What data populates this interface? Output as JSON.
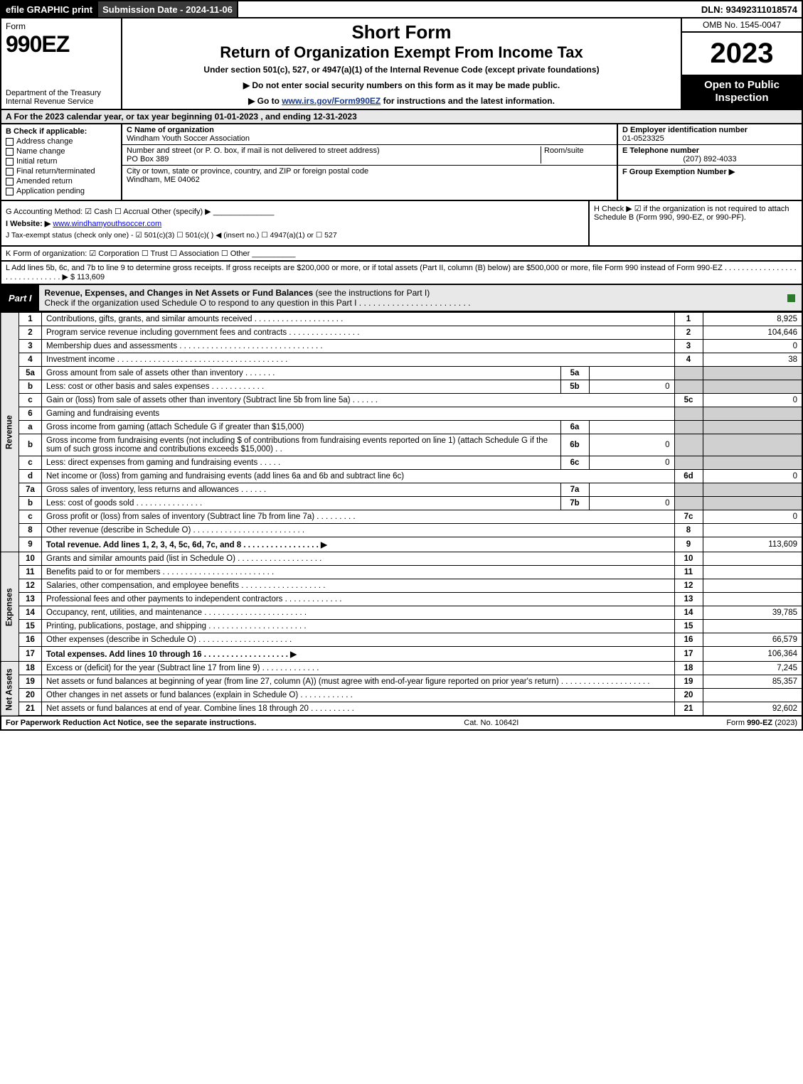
{
  "top": {
    "efile": "efile GRAPHIC print",
    "sub_date_label": "Submission Date - 2024-11-06",
    "dln": "DLN: 93492311018574"
  },
  "header": {
    "form_word": "Form",
    "form_number": "990EZ",
    "dept": "Department of the Treasury\nInternal Revenue Service",
    "short_form": "Short Form",
    "return_title": "Return of Organization Exempt From Income Tax",
    "under_section": "Under section 501(c), 527, or 4947(a)(1) of the Internal Revenue Code (except private foundations)",
    "notice1": "▶ Do not enter social security numbers on this form as it may be made public.",
    "notice2_pre": "▶ Go to ",
    "notice2_link": "www.irs.gov/Form990EZ",
    "notice2_post": " for instructions and the latest information.",
    "omb": "OMB No. 1545-0047",
    "year": "2023",
    "open_public": "Open to Public Inspection"
  },
  "row_a": "A  For the 2023 calendar year, or tax year beginning 01-01-2023 , and ending 12-31-2023",
  "box_b": {
    "title": "B  Check if applicable:",
    "items": [
      "Address change",
      "Name change",
      "Initial return",
      "Final return/terminated",
      "Amended return",
      "Application pending"
    ]
  },
  "box_c": {
    "label_name": "C Name of organization",
    "name": "Windham Youth Soccer Association",
    "label_street": "Number and street (or P. O. box, if mail is not delivered to street address)",
    "room_label": "Room/suite",
    "street": "PO Box 389",
    "label_city": "City or town, state or province, country, and ZIP or foreign postal code",
    "city": "Windham, ME  04062"
  },
  "box_d": {
    "label": "D Employer identification number",
    "value": "01-0523325"
  },
  "box_e": {
    "label": "E Telephone number",
    "value": "(207) 892-4033"
  },
  "box_f": {
    "label": "F Group Exemption Number  ▶",
    "value": ""
  },
  "box_g": "G Accounting Method:  ☑ Cash  ☐ Accrual  Other (specify) ▶ ______________",
  "box_h": "H  Check ▶ ☑ if the organization is not required to attach Schedule B (Form 990, 990-EZ, or 990-PF).",
  "box_i_label": "I Website: ▶",
  "box_i_value": "www.windhamyouthsoccer.com",
  "box_j": "J Tax-exempt status (check only one) - ☑ 501(c)(3) ☐ 501(c)(  ) ◀ (insert no.) ☐ 4947(a)(1) or ☐ 527",
  "row_k": "K Form of organization:  ☑ Corporation  ☐ Trust  ☐ Association  ☐ Other  __________",
  "row_l": "L Add lines 5b, 6c, and 7b to line 9 to determine gross receipts. If gross receipts are $200,000 or more, or if total assets (Part II, column (B) below) are $500,000 or more, file Form 990 instead of Form 990-EZ  .  .  .  .  .  .  .  .  .  .  .  .  .  .  .  .  .  .  .  .  .  .  .  .  .  .  .  .  .  .  ▶ $ 113,609",
  "part1": {
    "label": "Part I",
    "title_bold": "Revenue, Expenses, and Changes in Net Assets or Fund Balances",
    "title_rest": " (see the instructions for Part I)",
    "check_line": "Check if the organization used Schedule O to respond to any question in this Part I  .  .  .  .  .  .  .  .  .  .  .  .  .  .  .  .  .  .  .  .  .  .  .  ."
  },
  "side_labels": {
    "revenue": "Revenue",
    "expenses": "Expenses",
    "netassets": "Net Assets"
  },
  "lines": {
    "l1": {
      "n": "1",
      "d": "Contributions, gifts, grants, and similar amounts received  .  .  .  .  .  .  .  .  .  .  .  .  .  .  .  .  .  .  .  .",
      "c": "1",
      "v": "8,925"
    },
    "l2": {
      "n": "2",
      "d": "Program service revenue including government fees and contracts  .  .  .  .  .  .  .  .  .  .  .  .  .  .  .  .",
      "c": "2",
      "v": "104,646"
    },
    "l3": {
      "n": "3",
      "d": "Membership dues and assessments  .  .  .  .  .  .  .  .  .  .  .  .  .  .  .  .  .  .  .  .  .  .  .  .  .  .  .  .  .  .  .  .",
      "c": "3",
      "v": "0"
    },
    "l4": {
      "n": "4",
      "d": "Investment income  .  .  .  .  .  .  .  .  .  .  .  .  .  .  .  .  .  .  .  .  .  .  .  .  .  .  .  .  .  .  .  .  .  .  .  .  .  .",
      "c": "4",
      "v": "38"
    },
    "l5a": {
      "n": "5a",
      "d": "Gross amount from sale of assets other than inventory  .  .  .  .  .  .  .",
      "ic": "5a",
      "iv": ""
    },
    "l5b": {
      "n": "b",
      "d": "Less: cost or other basis and sales expenses  .  .  .  .  .  .  .  .  .  .  .  .",
      "ic": "5b",
      "iv": "0"
    },
    "l5c": {
      "n": "c",
      "d": "Gain or (loss) from sale of assets other than inventory (Subtract line 5b from line 5a)  .  .  .  .  .  .",
      "c": "5c",
      "v": "0"
    },
    "l6": {
      "n": "6",
      "d": "Gaming and fundraising events"
    },
    "l6a": {
      "n": "a",
      "d": "Gross income from gaming (attach Schedule G if greater than $15,000)",
      "ic": "6a",
      "iv": ""
    },
    "l6b": {
      "n": "b",
      "d": "Gross income from fundraising events (not including $                       of contributions from fundraising events reported on line 1) (attach Schedule G if the sum of such gross income and contributions exceeds $15,000)   .  .",
      "ic": "6b",
      "iv": "0"
    },
    "l6c": {
      "n": "c",
      "d": "Less: direct expenses from gaming and fundraising events   .  .  .  .  .",
      "ic": "6c",
      "iv": "0"
    },
    "l6d": {
      "n": "d",
      "d": "Net income or (loss) from gaming and fundraising events (add lines 6a and 6b and subtract line 6c)",
      "c": "6d",
      "v": "0"
    },
    "l7a": {
      "n": "7a",
      "d": "Gross sales of inventory, less returns and allowances  .  .  .  .  .  .",
      "ic": "7a",
      "iv": ""
    },
    "l7b": {
      "n": "b",
      "d": "Less: cost of goods sold       .  .  .  .  .  .  .  .  .  .  .  .  .  .  .",
      "ic": "7b",
      "iv": "0"
    },
    "l7c": {
      "n": "c",
      "d": "Gross profit or (loss) from sales of inventory (Subtract line 7b from line 7a)  .  .  .  .  .  .  .  .  .",
      "c": "7c",
      "v": "0"
    },
    "l8": {
      "n": "8",
      "d": "Other revenue (describe in Schedule O)  .  .  .  .  .  .  .  .  .  .  .  .  .  .  .  .  .  .  .  .  .  .  .  .  .",
      "c": "8",
      "v": ""
    },
    "l9": {
      "n": "9",
      "d": "Total revenue. Add lines 1, 2, 3, 4, 5c, 6d, 7c, and 8  .  .  .  .  .  .  .  .  .  .  .  .  .  .  .  .  .   ▶",
      "c": "9",
      "v": "113,609"
    },
    "l10": {
      "n": "10",
      "d": "Grants and similar amounts paid (list in Schedule O)  .  .  .  .  .  .  .  .  .  .  .  .  .  .  .  .  .  .  .",
      "c": "10",
      "v": ""
    },
    "l11": {
      "n": "11",
      "d": "Benefits paid to or for members       .  .  .  .  .  .  .  .  .  .  .  .  .  .  .  .  .  .  .  .  .  .  .  .  .",
      "c": "11",
      "v": ""
    },
    "l12": {
      "n": "12",
      "d": "Salaries, other compensation, and employee benefits  .  .  .  .  .  .  .  .  .  .  .  .  .  .  .  .  .  .  .",
      "c": "12",
      "v": ""
    },
    "l13": {
      "n": "13",
      "d": "Professional fees and other payments to independent contractors  .  .  .  .  .  .  .  .  .  .  .  .  .",
      "c": "13",
      "v": ""
    },
    "l14": {
      "n": "14",
      "d": "Occupancy, rent, utilities, and maintenance .  .  .  .  .  .  .  .  .  .  .  .  .  .  .  .  .  .  .  .  .  .  .",
      "c": "14",
      "v": "39,785"
    },
    "l15": {
      "n": "15",
      "d": "Printing, publications, postage, and shipping .  .  .  .  .  .  .  .  .  .  .  .  .  .  .  .  .  .  .  .  .  .",
      "c": "15",
      "v": ""
    },
    "l16": {
      "n": "16",
      "d": "Other expenses (describe in Schedule O)      .  .  .  .  .  .  .  .  .  .  .  .  .  .  .  .  .  .  .  .  .",
      "c": "16",
      "v": "66,579"
    },
    "l17": {
      "n": "17",
      "d": "Total expenses. Add lines 10 through 16     .  .  .  .  .  .  .  .  .  .  .  .  .  .  .  .  .  .  .   ▶",
      "c": "17",
      "v": "106,364"
    },
    "l18": {
      "n": "18",
      "d": "Excess or (deficit) for the year (Subtract line 17 from line 9)       .  .  .  .  .  .  .  .  .  .  .  .  .",
      "c": "18",
      "v": "7,245"
    },
    "l19": {
      "n": "19",
      "d": "Net assets or fund balances at beginning of year (from line 27, column (A)) (must agree with end-of-year figure reported on prior year's return) .  .  .  .  .  .  .  .  .  .  .  .  .  .  .  .  .  .  .  .",
      "c": "19",
      "v": "85,357"
    },
    "l20": {
      "n": "20",
      "d": "Other changes in net assets or fund balances (explain in Schedule O)  .  .  .  .  .  .  .  .  .  .  .  .",
      "c": "20",
      "v": ""
    },
    "l21": {
      "n": "21",
      "d": "Net assets or fund balances at end of year. Combine lines 18 through 20  .  .  .  .  .  .  .  .  .  .",
      "c": "21",
      "v": "92,602"
    }
  },
  "footer": {
    "left": "For Paperwork Reduction Act Notice, see the separate instructions.",
    "mid": "Cat. No. 10642I",
    "right_pre": "Form ",
    "right_bold": "990-EZ",
    "right_post": " (2023)"
  },
  "colors": {
    "black": "#000000",
    "shade": "#d0d0d0",
    "part_bg": "#e8e8e8",
    "check_green": "#2a7a2a"
  }
}
